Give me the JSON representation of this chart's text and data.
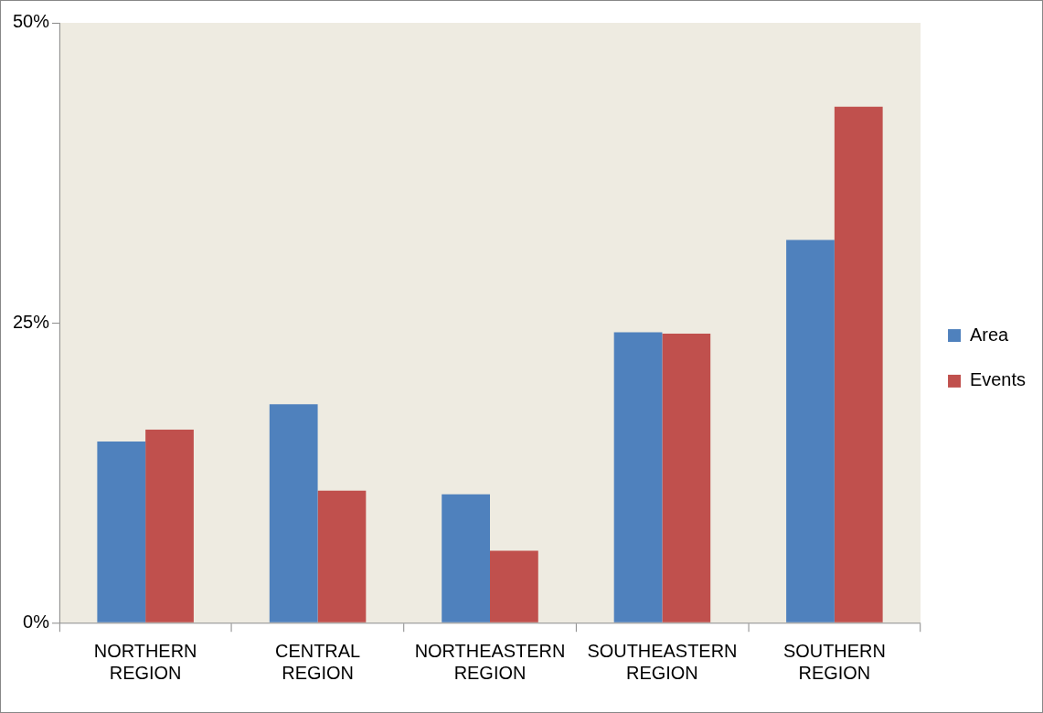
{
  "chart_data": {
    "type": "bar",
    "categories": [
      "NORTHERN REGION",
      "CENTRAL REGION",
      "NORTHEASTERN REGION",
      "SOUTHEASTERN REGION",
      "SOUTHERN REGION"
    ],
    "series": [
      {
        "name": "Area",
        "color": "#4f81bd",
        "values": [
          15.1,
          18.2,
          10.7,
          24.2,
          31.9
        ]
      },
      {
        "name": "Events",
        "color": "#c0504d",
        "values": [
          16.1,
          11.0,
          6.0,
          24.1,
          43.0
        ]
      }
    ],
    "ylim": [
      0,
      50
    ],
    "yticks": [
      {
        "value": 0,
        "label": "0%"
      },
      {
        "value": 25,
        "label": "25%"
      },
      {
        "value": 50,
        "label": "50%"
      }
    ],
    "grid": false,
    "legend": "right"
  }
}
